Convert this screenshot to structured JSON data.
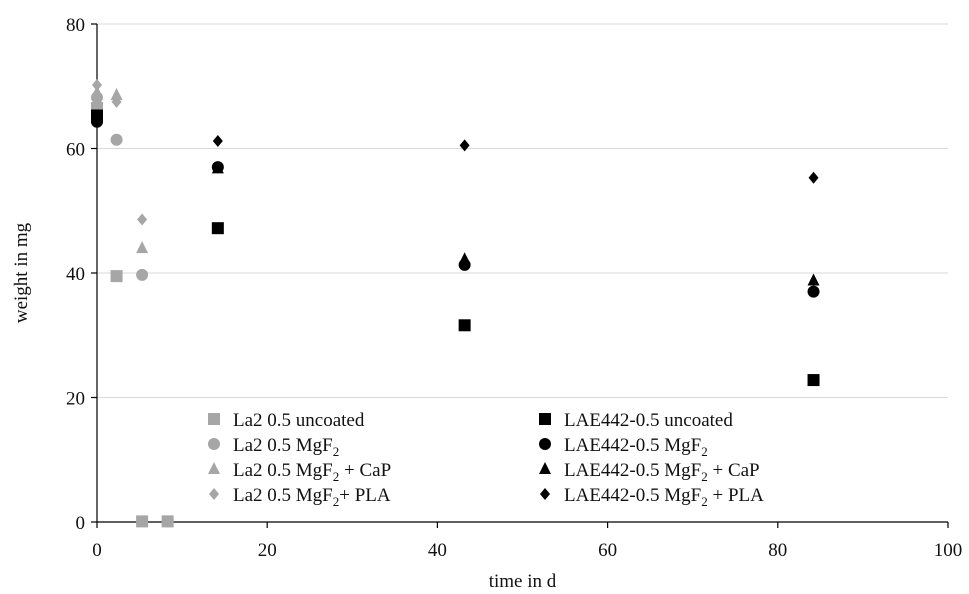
{
  "chart_data": {
    "type": "scatter",
    "xlabel": "time in d",
    "ylabel": "weight in mg",
    "xlim": [
      0,
      100
    ],
    "ylim": [
      0,
      80
    ],
    "xticks": [
      "0",
      "20",
      "40",
      "60",
      "80",
      "100"
    ],
    "yticks": [
      "0",
      "20",
      "40",
      "60",
      "80"
    ],
    "grid": "horizontal",
    "legend_placement": "bottom-center",
    "colors": {
      "gray": "#a6a6a6",
      "black": "#000000",
      "grid": "#d9d9d9",
      "axis": "#000000"
    },
    "series": [
      {
        "name": "La2 0.5 uncoated",
        "marker": "square",
        "color": "#a6a6a6",
        "points": [
          [
            0,
            66.5
          ],
          [
            2.3,
            39.5
          ],
          [
            5.3,
            0.1
          ],
          [
            8.3,
            0.1
          ]
        ]
      },
      {
        "name": "La2 0.5 MgF2",
        "name_parts": [
          "La2 0.5 MgF",
          "2",
          ""
        ],
        "marker": "circle",
        "color": "#a6a6a6",
        "points": [
          [
            0,
            68.2
          ],
          [
            2.3,
            61.4
          ],
          [
            5.3,
            39.7
          ],
          [
            8.3,
            0.1
          ]
        ]
      },
      {
        "name": "La2 0.5 MgF2 + CaP",
        "name_parts": [
          "La2 0.5 MgF",
          "2",
          " + CaP"
        ],
        "marker": "triangle",
        "color": "#a6a6a6",
        "points": [
          [
            0,
            69.0
          ],
          [
            2.3,
            68.6
          ],
          [
            5.3,
            44.0
          ]
        ]
      },
      {
        "name": "La2 0.5 MgF2+ PLA",
        "name_parts": [
          "La2 0.5 MgF",
          "2",
          "+ PLA"
        ],
        "marker": "diamond",
        "color": "#a6a6a6",
        "points": [
          [
            0,
            70.2
          ],
          [
            2.3,
            67.5
          ],
          [
            5.3,
            48.6
          ]
        ]
      },
      {
        "name": "LAE442-0.5 uncoated",
        "marker": "square",
        "color": "#000000",
        "points": [
          [
            0,
            65.3
          ],
          [
            14.2,
            47.2
          ],
          [
            43.2,
            31.6
          ],
          [
            84.2,
            22.8
          ]
        ]
      },
      {
        "name": "LAE442-0.5 MgF2",
        "name_parts": [
          "LAE442-0.5 MgF",
          "2",
          ""
        ],
        "marker": "circle",
        "color": "#000000",
        "points": [
          [
            0,
            64.3
          ],
          [
            14.2,
            57.0
          ],
          [
            43.2,
            41.3
          ],
          [
            84.2,
            37.0
          ]
        ]
      },
      {
        "name": "LAE442-0.5 MgF2 + CaP",
        "name_parts": [
          "LAE442-0.5 MgF",
          "2",
          " + CaP"
        ],
        "marker": "triangle",
        "color": "#000000",
        "points": [
          [
            0,
            65.0
          ],
          [
            14.2,
            56.8
          ],
          [
            43.2,
            42.2
          ],
          [
            84.2,
            38.8
          ]
        ]
      },
      {
        "name": "LAE442-0.5 MgF2 + PLA",
        "name_parts": [
          "LAE442-0.5 MgF",
          "2",
          " + PLA"
        ],
        "marker": "diamond",
        "color": "#000000",
        "points": [
          [
            0,
            65.0
          ],
          [
            14.2,
            61.2
          ],
          [
            43.2,
            60.5
          ],
          [
            84.2,
            55.3
          ]
        ]
      }
    ]
  }
}
